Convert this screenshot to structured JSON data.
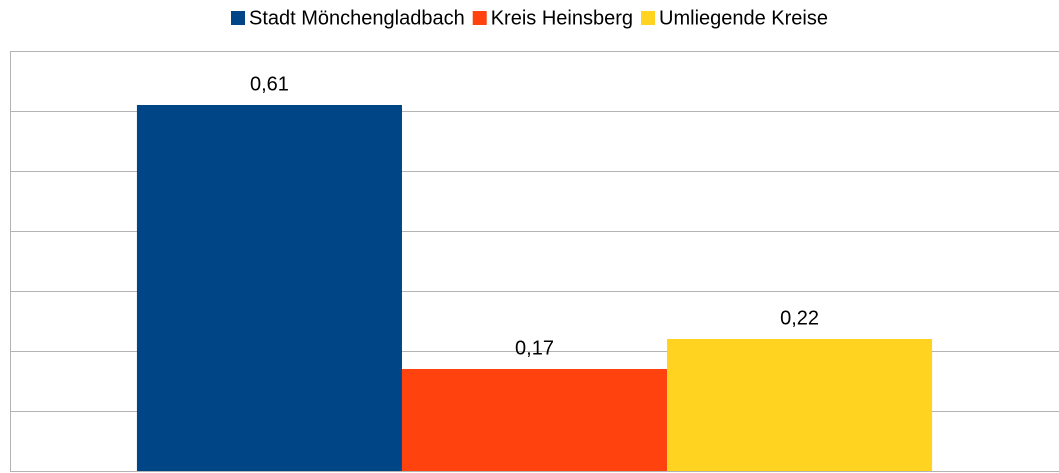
{
  "chart_data": {
    "type": "bar",
    "categories": [
      null
    ],
    "series": [
      {
        "name": "Stadt Mönchengladbach",
        "color": "#004586",
        "values": [
          0.61
        ],
        "value_labels": [
          "0,61"
        ]
      },
      {
        "name": "Kreis Heinsberg",
        "color": "#ff420e",
        "values": [
          0.17
        ],
        "value_labels": [
          "0,17"
        ]
      },
      {
        "name": "Umliegende Kreise",
        "color": "#ffd320",
        "values": [
          0.22
        ],
        "value_labels": [
          "0,22"
        ]
      }
    ],
    "ylim": [
      0,
      0.7
    ],
    "yticks": [
      0,
      0.1,
      0.2,
      0.3,
      0.4,
      0.5,
      0.6,
      0.7
    ],
    "grid": true,
    "legend": "top"
  }
}
